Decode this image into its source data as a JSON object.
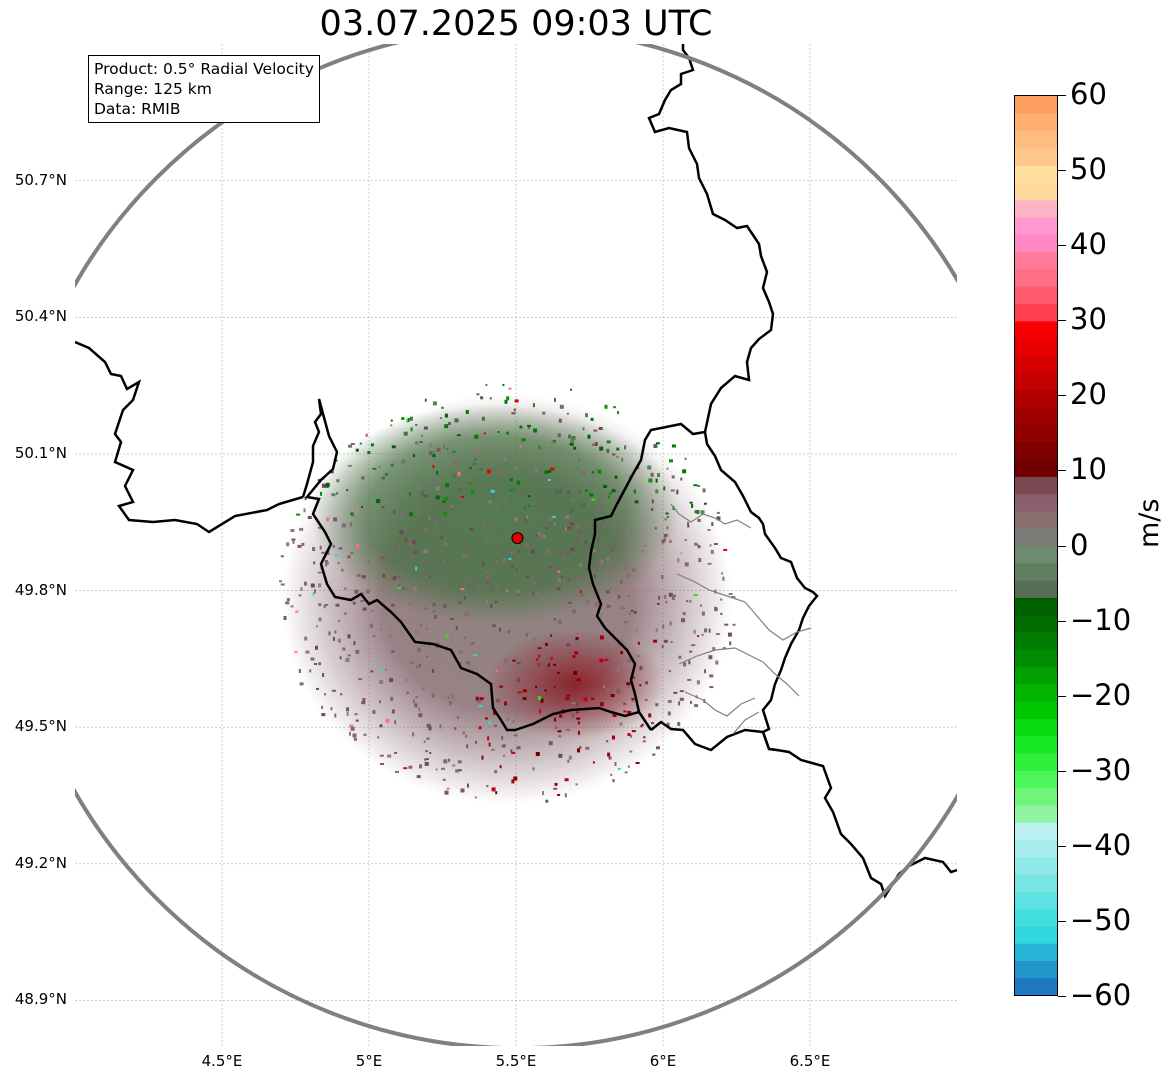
{
  "title": "03.07.2025 09:03 UTC",
  "info_box": {
    "product": "Product: 0.5° Radial Velocity",
    "range": "Range: 125 km",
    "data": "Data: RMIB"
  },
  "map": {
    "lon_range": [
      4.0,
      7.0
    ],
    "lat_range": [
      48.8,
      51.0
    ],
    "lat_ticks": [
      {
        "value": 50.7,
        "label": "50.7°N"
      },
      {
        "value": 50.4,
        "label": "50.4°N"
      },
      {
        "value": 50.1,
        "label": "50.1°N"
      },
      {
        "value": 49.8,
        "label": "49.8°N"
      },
      {
        "value": 49.5,
        "label": "49.5°N"
      },
      {
        "value": 49.2,
        "label": "49.2°N"
      },
      {
        "value": 48.9,
        "label": "48.9°N"
      }
    ],
    "lon_ticks": [
      {
        "value": 4.5,
        "label": "4.5°E"
      },
      {
        "value": 5.0,
        "label": "5°E"
      },
      {
        "value": 5.5,
        "label": "5.5°E"
      },
      {
        "value": 6.0,
        "label": "6°E"
      },
      {
        "value": 6.5,
        "label": "6.5°E"
      }
    ],
    "radar_site": {
      "lon": 5.505,
      "lat": 49.915
    },
    "range_ring_color": "#808080",
    "border_color": "#000000",
    "site_color": "#e00000",
    "gridlines": true
  },
  "colorbar": {
    "unit": "m/s",
    "min": -60,
    "max": 60,
    "ticks": [
      {
        "value": 60,
        "label": "60"
      },
      {
        "value": 50,
        "label": "50"
      },
      {
        "value": 40,
        "label": "40"
      },
      {
        "value": 30,
        "label": "30"
      },
      {
        "value": 20,
        "label": "20"
      },
      {
        "value": 10,
        "label": "10"
      },
      {
        "value": 0,
        "label": "0"
      },
      {
        "value": -10,
        "label": "−10"
      },
      {
        "value": -20,
        "label": "−20"
      },
      {
        "value": -30,
        "label": "−30"
      },
      {
        "value": -40,
        "label": "−40"
      },
      {
        "value": -50,
        "label": "−50"
      },
      {
        "value": -60,
        "label": "−60"
      }
    ],
    "colors_low_to_high": [
      "#1f78c0",
      "#2396cc",
      "#27b4d6",
      "#2ed8dc",
      "#45dede",
      "#5fe2e2",
      "#78e5e5",
      "#90e9e9",
      "#a6ecec",
      "#baf0f0",
      "#8ff5a0",
      "#6ef57a",
      "#4cf55a",
      "#2ef03a",
      "#18e825",
      "#08dc10",
      "#00c800",
      "#00b400",
      "#00a000",
      "#008c00",
      "#007c00",
      "#006c00",
      "#006000",
      "#556e55",
      "#607f60",
      "#6f8a6f",
      "#7c7c78",
      "#887070",
      "#8a6070",
      "#7a4650",
      "#6e0000",
      "#7e0000",
      "#900000",
      "#a00000",
      "#b20000",
      "#c40000",
      "#d60000",
      "#e80000",
      "#f60000",
      "#ff4050",
      "#ff5a6e",
      "#ff6e84",
      "#ff7a9a",
      "#ff88c0",
      "#ff98d0",
      "#ffb4c4",
      "#ffd8a0",
      "#ffe0a0",
      "#ffc88a",
      "#ffbc80",
      "#ffb070",
      "#ffa060"
    ]
  }
}
